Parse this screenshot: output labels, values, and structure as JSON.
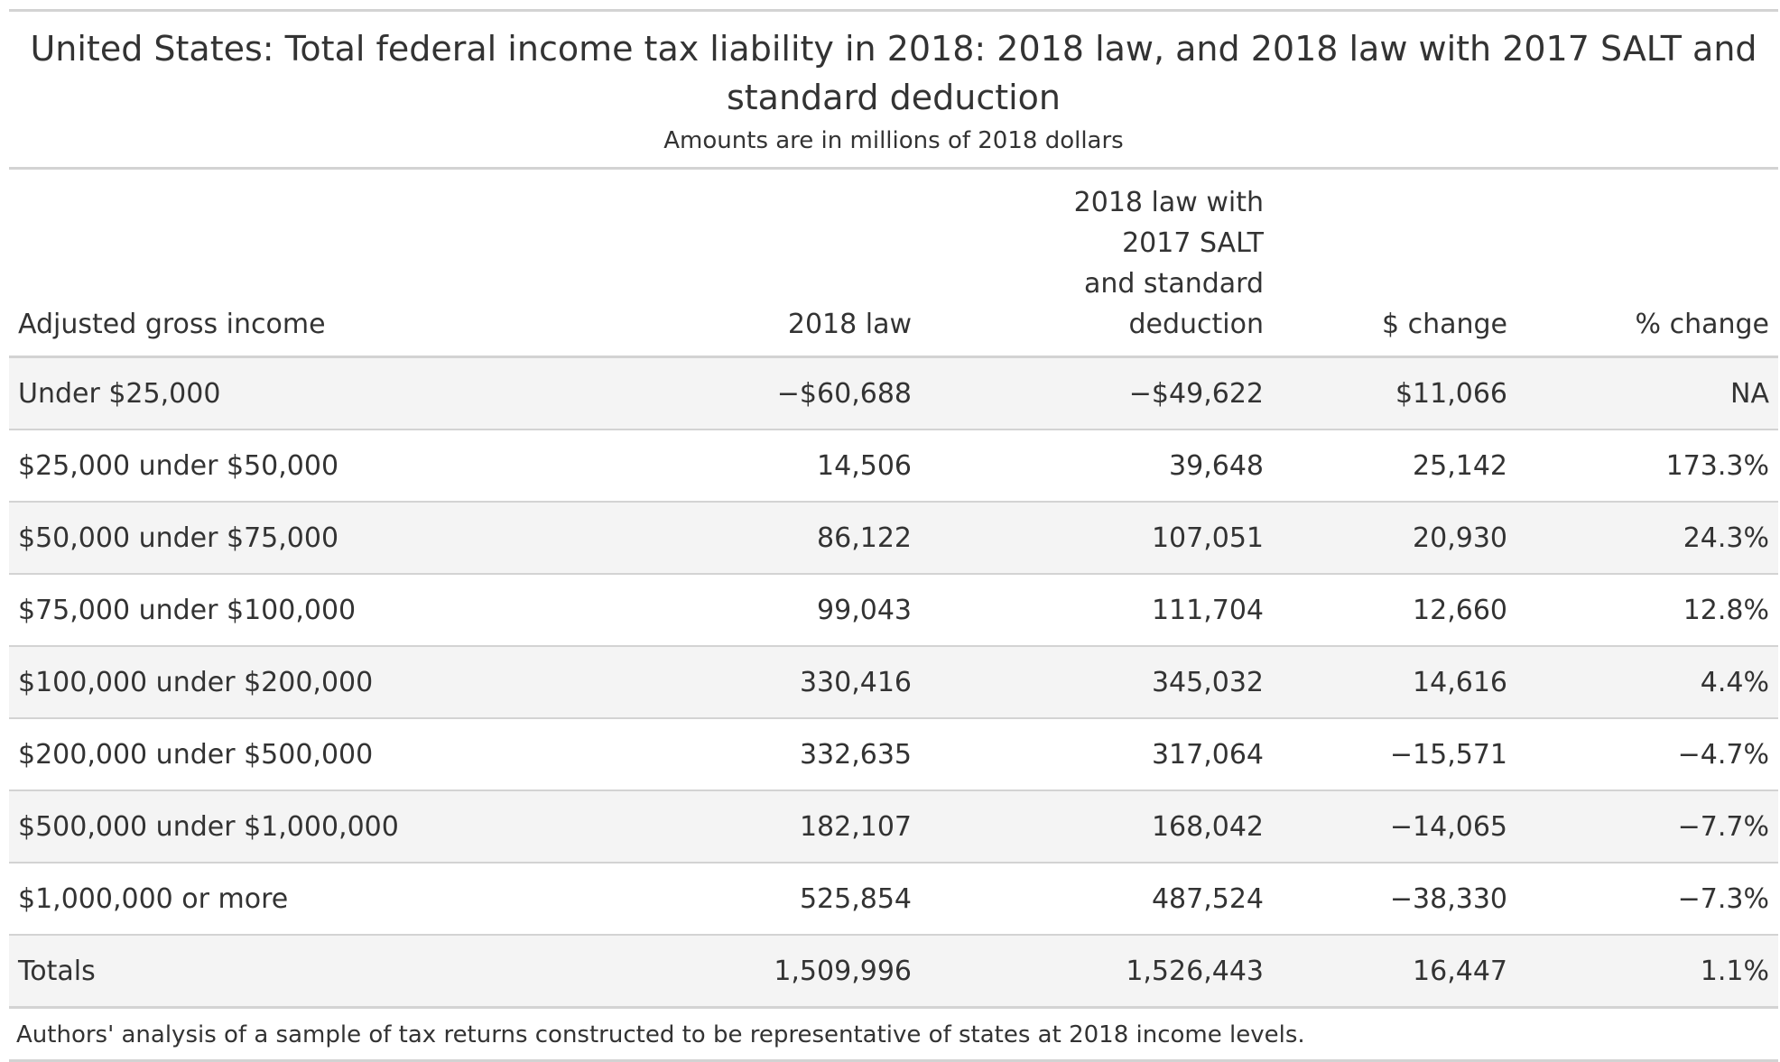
{
  "header": {
    "title": "United States: Total federal income tax liability in 2018: 2018 law, and 2018 law with 2017 SALT and standard deduction",
    "subtitle": "Amounts are in millions of 2018 dollars"
  },
  "table": {
    "columns": {
      "agi": "Adjusted gross income",
      "law2018": "2018 law",
      "alt_line1": "2018 law with",
      "alt_line2": "2017 SALT",
      "alt_line3": "and standard",
      "alt_line4": "deduction",
      "dollar_change": "$ change",
      "pct_change": "% change"
    },
    "rows": [
      {
        "agi": "Under $25,000",
        "law2018": "−$60,688",
        "alt": "−$49,622",
        "dollar_change": "$11,066",
        "pct_change": "NA"
      },
      {
        "agi": "$25,000 under $50,000",
        "law2018": "14,506",
        "alt": "39,648",
        "dollar_change": "25,142",
        "pct_change": "173.3%"
      },
      {
        "agi": "$50,000 under $75,000",
        "law2018": "86,122",
        "alt": "107,051",
        "dollar_change": "20,930",
        "pct_change": "24.3%"
      },
      {
        "agi": "$75,000 under $100,000",
        "law2018": "99,043",
        "alt": "111,704",
        "dollar_change": "12,660",
        "pct_change": "12.8%"
      },
      {
        "agi": "$100,000 under $200,000",
        "law2018": "330,416",
        "alt": "345,032",
        "dollar_change": "14,616",
        "pct_change": "4.4%"
      },
      {
        "agi": "$200,000 under $500,000",
        "law2018": "332,635",
        "alt": "317,064",
        "dollar_change": "−15,571",
        "pct_change": "−4.7%"
      },
      {
        "agi": "$500,000 under $1,000,000",
        "law2018": "182,107",
        "alt": "168,042",
        "dollar_change": "−14,065",
        "pct_change": "−7.7%"
      },
      {
        "agi": "$1,000,000 or more",
        "law2018": "525,854",
        "alt": "487,524",
        "dollar_change": "−38,330",
        "pct_change": "−7.3%"
      },
      {
        "agi": "Totals",
        "law2018": "1,509,996",
        "alt": "1,526,443",
        "dollar_change": "16,447",
        "pct_change": "1.1%"
      }
    ]
  },
  "footer": {
    "source": "Authors' analysis of a sample of tax returns constructed to be representative of states at 2018 income levels."
  },
  "colors": {
    "rule": "#d3d3d3",
    "shaded_row": "#f4f4f4",
    "text": "#333333"
  }
}
